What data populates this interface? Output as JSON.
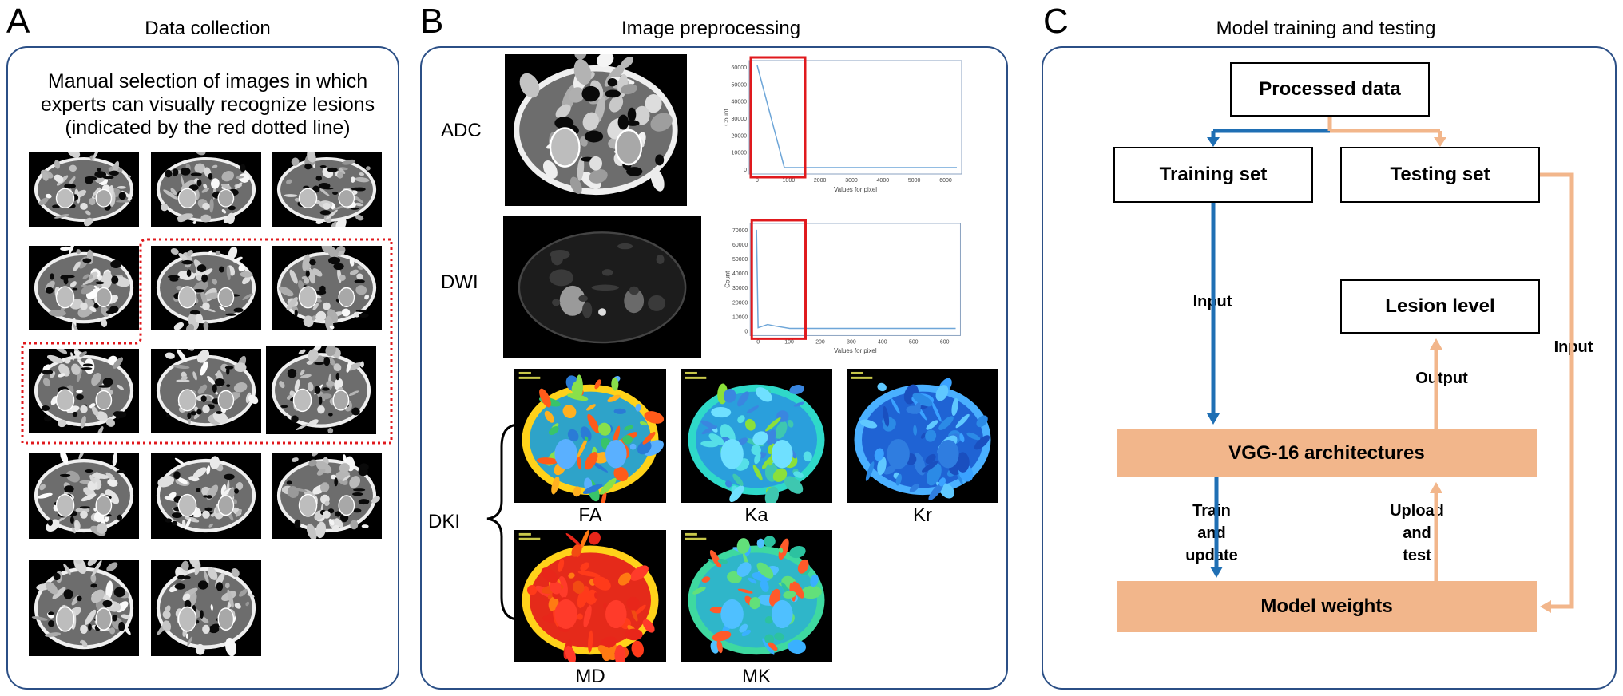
{
  "panels": {
    "a": {
      "letter": "A",
      "title": "Data collection",
      "description": [
        "Manual selection of images in which",
        "experts can visually recognize lesions",
        "(indicated by the red dotted line)"
      ]
    },
    "b": {
      "letter": "B",
      "title": "Image preprocessing",
      "rows": {
        "adc": "ADC",
        "dwi": "DWI",
        "dki": "DKI"
      },
      "maps": {
        "fa": "FA",
        "ka": "Ka",
        "kr": "Kr",
        "md": "MD",
        "mk": "MK"
      }
    },
    "c": {
      "letter": "C",
      "title": "Model training and testing",
      "boxes": {
        "processed": "Processed data",
        "training": "Training set",
        "testing": "Testing set",
        "lesion": "Lesion level",
        "vgg": "VGG-16 architectures",
        "weights": "Model weights"
      },
      "labels": {
        "input_left": "Input",
        "input_right": "Input",
        "output": "Output",
        "train_update": [
          "Train",
          "and",
          "update"
        ],
        "upload_test": [
          "Upload",
          "and",
          "test"
        ]
      }
    }
  },
  "histograms": [
    {
      "id": "adc",
      "ylabel": "Count",
      "xlabel": "Values for pixel",
      "yticks": [
        "60000",
        "50000",
        "40000",
        "30000",
        "20000",
        "10000",
        "0"
      ],
      "xticks": [
        "0",
        "1000",
        "2000",
        "3000",
        "4000",
        "5000",
        "6000"
      ]
    },
    {
      "id": "dwi",
      "ylabel": "Count",
      "xlabel": "Values for pixel",
      "yticks": [
        "70000",
        "60000",
        "50000",
        "40000",
        "30000",
        "20000",
        "10000",
        "0"
      ],
      "xticks": [
        "0",
        "100",
        "200",
        "300",
        "400",
        "500",
        "600"
      ]
    }
  ],
  "colors": {
    "panel_border": "#2b4f86",
    "arrow_blue": "#1f6fb4",
    "arrow_orange": "#f2b68b",
    "orange_fill": "#f2b68b",
    "red_outline": "#e0191d"
  }
}
